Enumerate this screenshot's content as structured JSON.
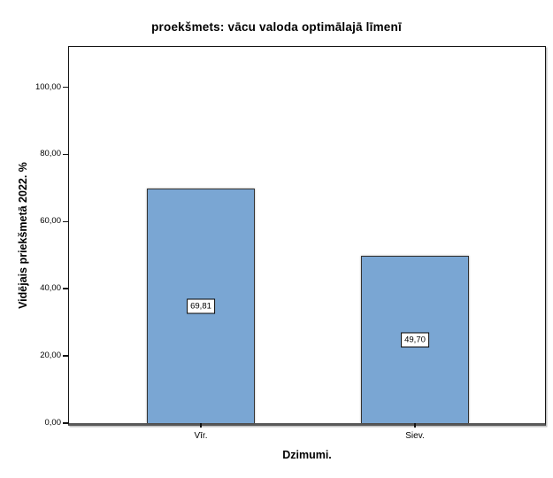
{
  "chart_data": {
    "type": "bar",
    "title": "proekšmets: vācu valoda optimālajā līmenī",
    "xlabel": "Dzimumi.",
    "ylabel": "Vidējais priekšmetā 2022. %",
    "categories": [
      "Vīr.",
      "Siev."
    ],
    "values": [
      69.81,
      49.7
    ],
    "value_labels": [
      "69,81",
      "49,70"
    ],
    "ytick_labels": [
      "0,00",
      "20,00",
      "40,00",
      "60,00",
      "80,00",
      "100,00"
    ],
    "ytick_values": [
      0,
      20,
      40,
      60,
      80,
      100
    ],
    "ylim": [
      0,
      112
    ],
    "grid": false,
    "legend": false,
    "bar_color": "#7AA6D3",
    "bar_border_color": "#333333",
    "decimal_separator": ","
  }
}
